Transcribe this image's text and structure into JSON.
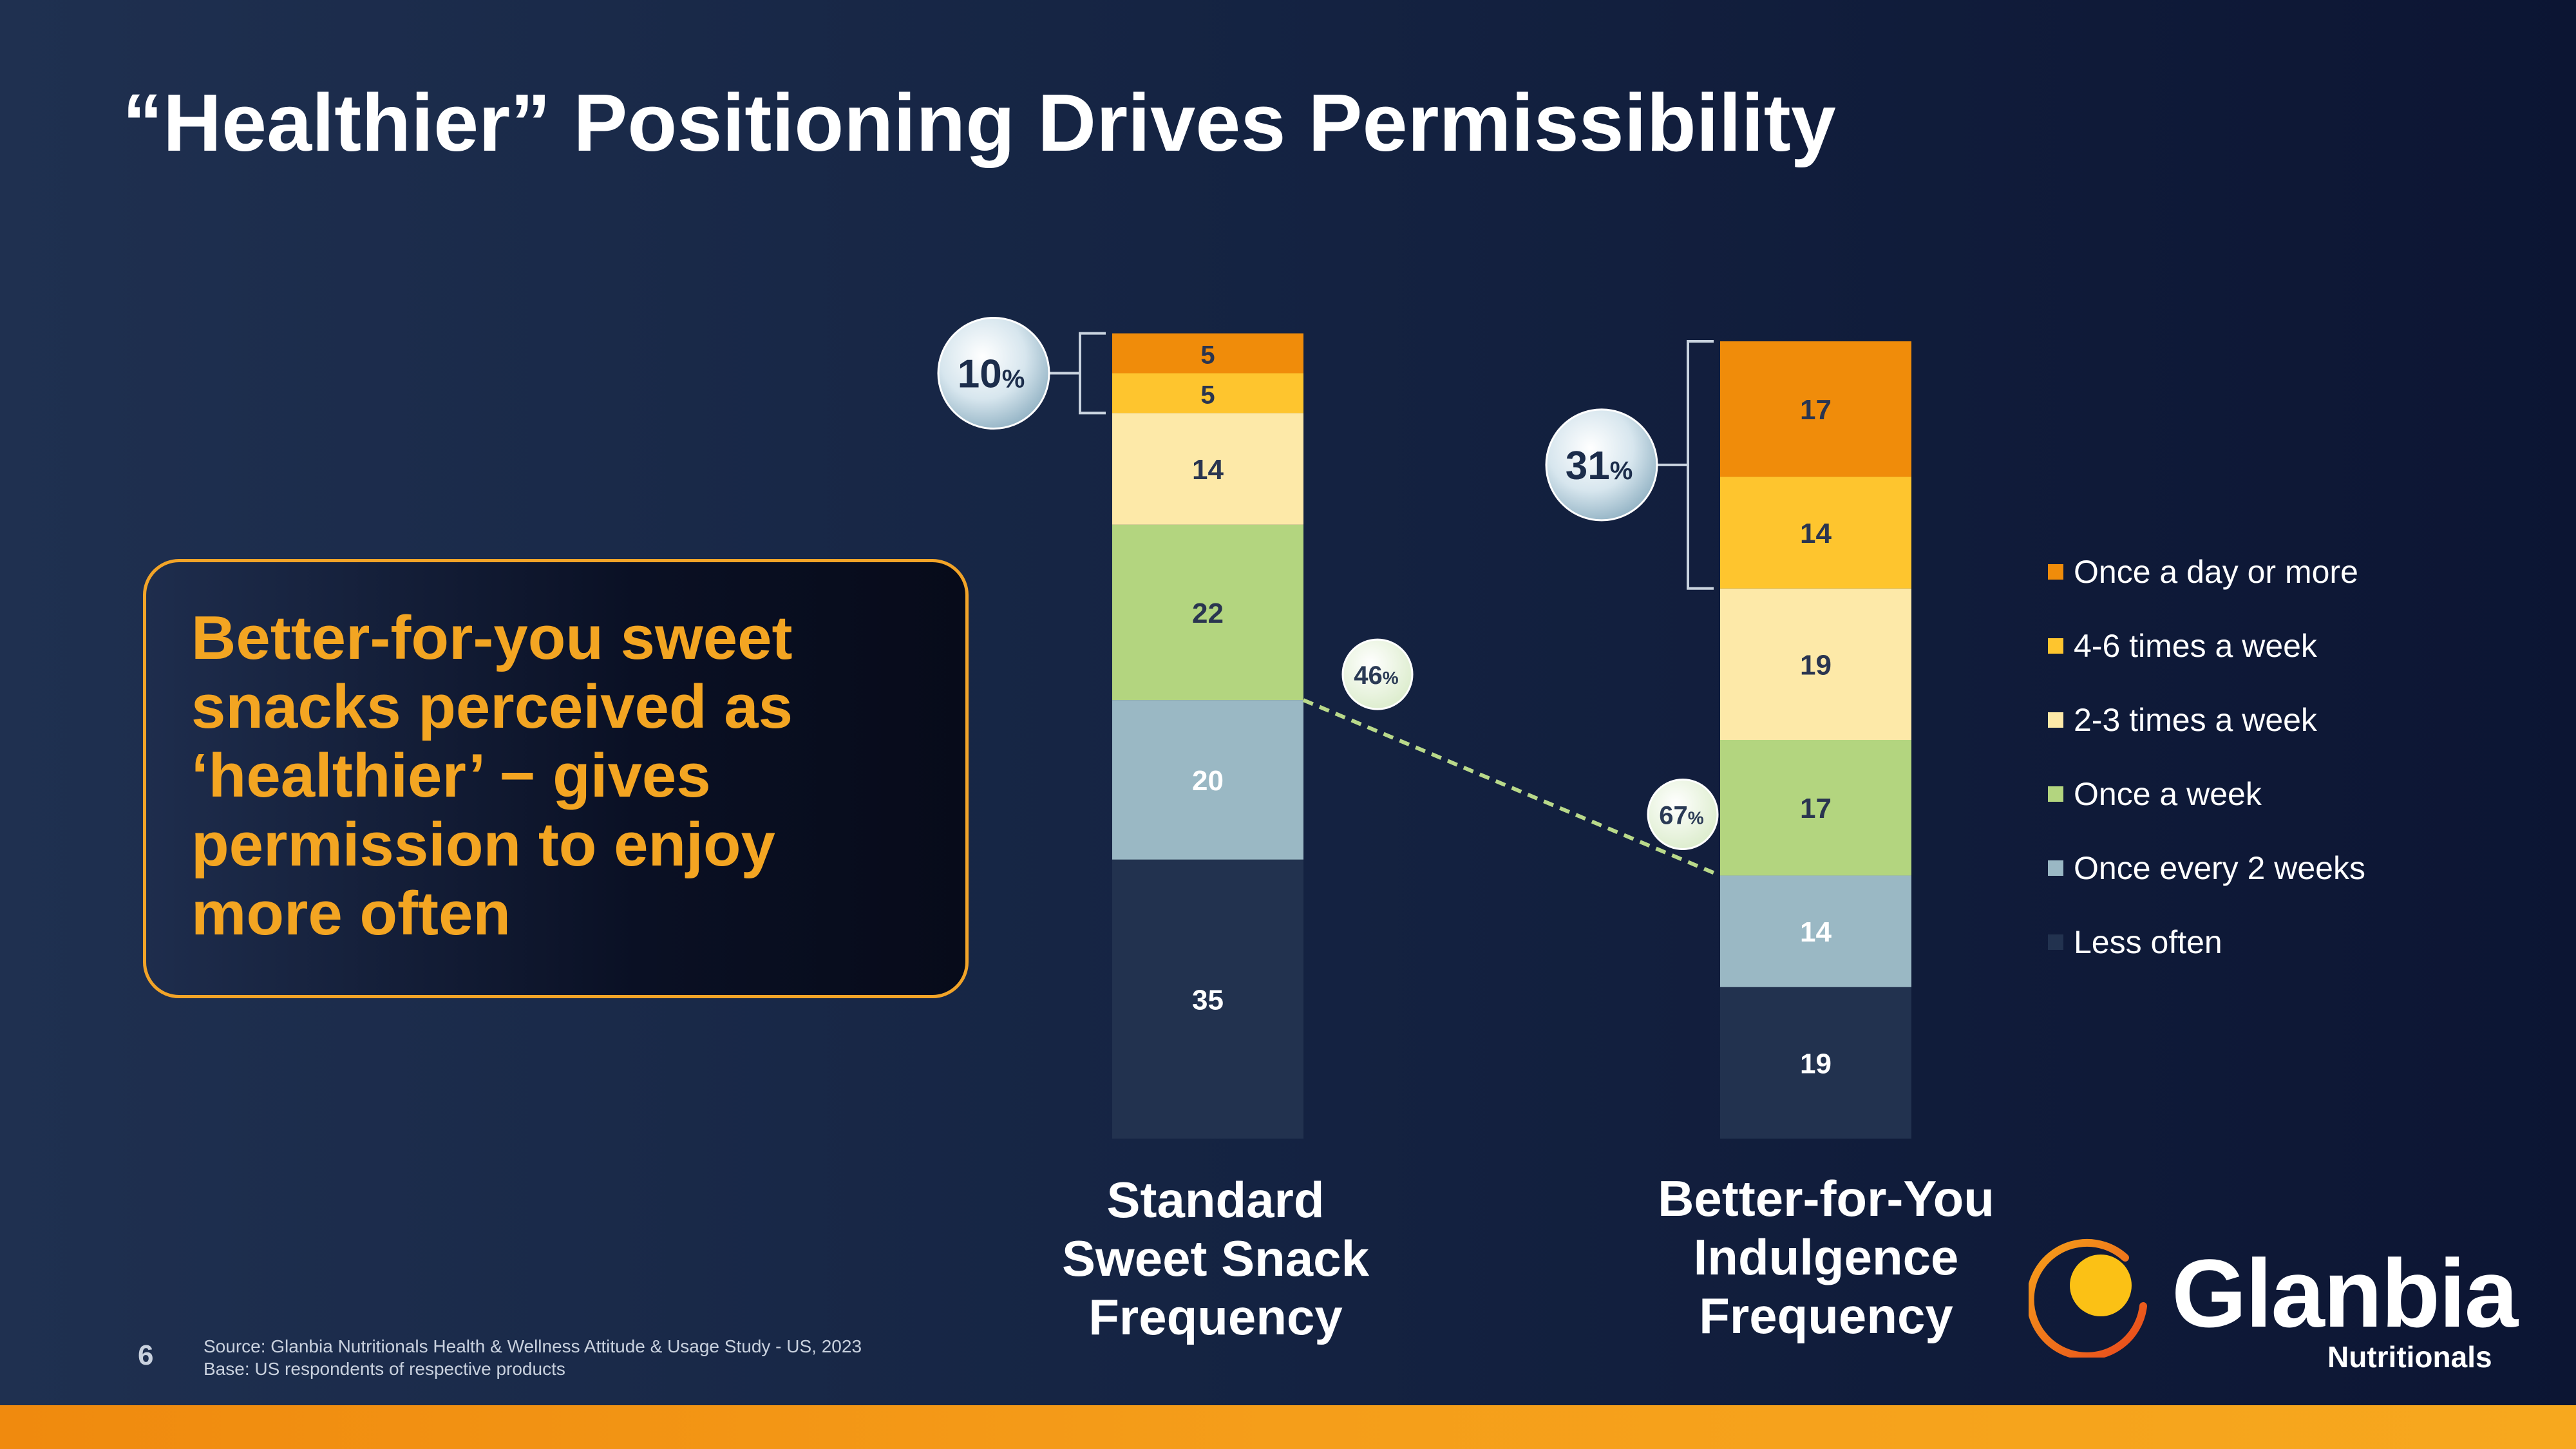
{
  "slide": {
    "title": "“Healthier” Positioning Drives Permissibility",
    "callout": "Better-for-you sweet snacks perceived as ‘healthier’ − gives permission to enjoy more often",
    "page_number": "6",
    "source_line1": "Source: Glanbia Nutritionals Health & Wellness Attitude & Usage Study - US, 2023",
    "source_line2": "Base: US respondents of respective products",
    "logo_word": "Glanbia",
    "logo_sub": "Nutritionals"
  },
  "colors": {
    "Once a day or more": "#f08c0a",
    "4-6 times a week": "#fec52e",
    "2-3 times a week": "#fde9a8",
    "Once a week": "#b3d57f",
    "Once every 2 weeks": "#9ab8c4",
    "Less often": "#22324f",
    "dashed_line": "#b9d98a",
    "accent": "#f3a522"
  },
  "chart_data": {
    "type": "bar",
    "stacked": true,
    "categories": [
      "Standard Sweet Snack Frequency",
      "Better-for-You Indulgence Frequency"
    ],
    "series": [
      {
        "name": "Less often",
        "values": [
          35,
          19
        ]
      },
      {
        "name": "Once every 2 weeks",
        "values": [
          20,
          14
        ]
      },
      {
        "name": "Once a week",
        "values": [
          22,
          17
        ]
      },
      {
        "name": "2-3 times a week",
        "values": [
          14,
          19
        ]
      },
      {
        "name": "4-6 times a week",
        "values": [
          5,
          14
        ]
      },
      {
        "name": "Once a day or more",
        "values": [
          5,
          17
        ]
      }
    ],
    "legend_order": [
      "Once a day or more",
      "4-6 times a week",
      "2-3 times a week",
      "Once a week",
      "Once every 2 weeks",
      "Less often"
    ],
    "legend_position": "right",
    "top_bracket_labels": [
      "10",
      "31"
    ],
    "percent_sign": "%",
    "weekly_plus_labels": [
      "46",
      "67"
    ],
    "category_label_lines": [
      [
        "Standard",
        "Sweet Snack",
        "Frequency"
      ],
      [
        "Better-for-You",
        "Indulgence",
        "Frequency"
      ]
    ]
  }
}
